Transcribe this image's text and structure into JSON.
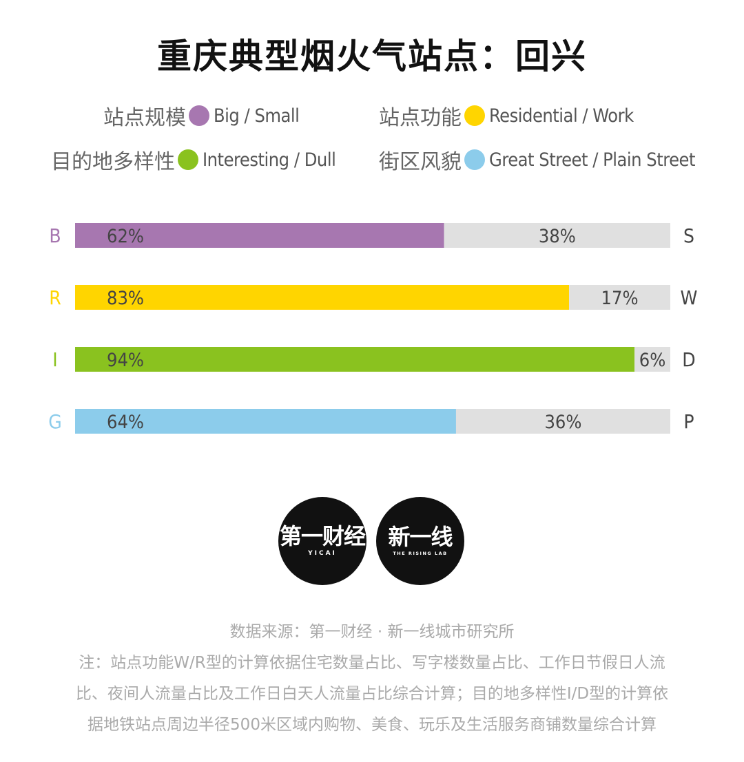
{
  "title": "重庆典型烟火气站点：回兴",
  "legend": [
    {
      "label": "站点规模",
      "code": "Big / Small",
      "color": "#a777b0"
    },
    {
      "label": "站点功能",
      "code": "Residential / Work",
      "color": "#ffd500"
    },
    {
      "label": "目的地多样性",
      "code": "Interesting / Dull",
      "color": "#8ac21f"
    },
    {
      "label": "街区风貌",
      "code": "Great Street / Plain Street",
      "color": "#8ccceb"
    }
  ],
  "chart_data": {
    "type": "bar",
    "orientation": "horizontal",
    "stacked": true,
    "percent": true,
    "categories": [
      {
        "left": "B",
        "right": "S"
      },
      {
        "left": "R",
        "right": "W"
      },
      {
        "left": "I",
        "right": "D"
      },
      {
        "left": "G",
        "right": "P"
      }
    ],
    "series": [
      {
        "values": [
          62,
          83,
          94,
          64
        ],
        "colors": [
          "#a777b0",
          "#ffd500",
          "#8ac21f",
          "#8ccceb"
        ]
      },
      {
        "values": [
          38,
          17,
          6,
          36
        ],
        "color": "#e0e0e0"
      }
    ],
    "data_labels": [
      {
        "first": "62%",
        "second": "38%"
      },
      {
        "first": "83%",
        "second": "17%"
      },
      {
        "first": "94%",
        "second": "6%"
      },
      {
        "first": "64%",
        "second": "36%"
      }
    ],
    "xlim": [
      0,
      100
    ]
  },
  "logos": {
    "yicai_main": "第一财经",
    "yicai_sub": "YICAI",
    "rising_main": "新一线",
    "rising_sub": "THE RISING LAB"
  },
  "footer": {
    "source": "数据来源：第一财经 · 新一线城市研究所",
    "note_line1": "注：站点功能W/R型的计算依据住宅数量占比、写字楼数量占比、工作日节假日人流",
    "note_line2": "比、夜间人流量占比及工作日白天人流量占比综合计算；目的地多样性I/D型的计算依",
    "note_line3": "据地铁站点周边半径500米区域内购物、美食、玩乐及生活服务商铺数量综合计算"
  }
}
